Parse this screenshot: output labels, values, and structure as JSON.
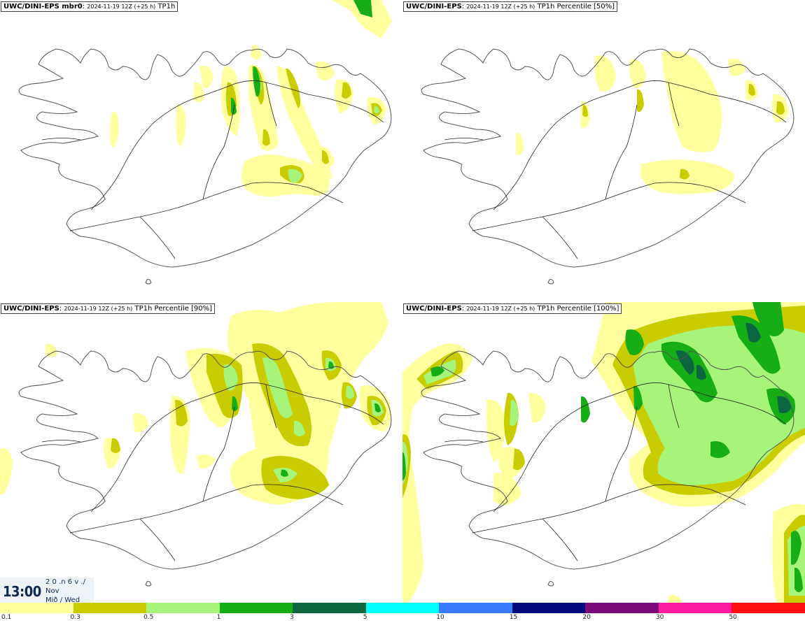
{
  "panels": [
    {
      "model": "UWC/DINI-EPS mbr0",
      "run": "2024-11-19 12Z (+25 h)",
      "field": "TP1h"
    },
    {
      "model": "UWC/DINI-EPS",
      "run": "2024-11-19 12Z (+25 h)",
      "field": "TP1h Percentile [50%]"
    },
    {
      "model": "UWC/DINI-EPS",
      "run": "2024-11-19 12Z (+25 h)",
      "field": "TP1h Percentile [90%]"
    },
    {
      "model": "UWC/DINI-EPS",
      "run": "2024-11-19 12Z (+25 h)",
      "field": "TP1h Percentile [100%]"
    }
  ],
  "time": {
    "hour": "13:00",
    "top": "2 0 .n 6 v ./",
    "month": "Nov",
    "weekday": "Mið / Wed"
  },
  "legend": {
    "colors": [
      "#ffff9e",
      "#c8cc00",
      "#a6f57a",
      "#17ad17",
      "#0c6640",
      "#00ffff",
      "#3a7aff",
      "#000a7a",
      "#7a0a7a",
      "#ff1aa0",
      "#ff1010"
    ],
    "ticks": [
      "0.1",
      "0.3",
      "0.5",
      "1",
      "3",
      "5",
      "10",
      "15",
      "20",
      "30",
      "50"
    ]
  },
  "map_style": {
    "coast": "#555555",
    "roads": "#222222",
    "light": "#ffff9e",
    "olive": "#c8cc00",
    "lime": "#a6f57a",
    "green": "#17ad17",
    "dark": "#0c6640"
  }
}
